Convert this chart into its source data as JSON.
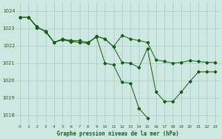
{
  "background_color": "#cce8e0",
  "grid_color": "#aacec8",
  "line_color": "#1a5c1a",
  "xlabel": "Graphe pression niveau de la mer (hPa)",
  "ylim": [
    1017.5,
    1024.5
  ],
  "yticks": [
    1018,
    1019,
    1020,
    1021,
    1022,
    1023,
    1024
  ],
  "xticks": [
    0,
    1,
    2,
    3,
    4,
    5,
    6,
    7,
    8,
    9,
    10,
    11,
    12,
    13,
    14,
    15,
    16,
    17,
    18,
    19,
    20,
    21,
    22,
    23
  ],
  "series": [
    {
      "x": [
        0,
        1,
        2,
        3,
        4,
        5,
        6,
        7,
        8,
        9,
        10,
        11,
        12,
        13,
        14,
        15
      ],
      "y": [
        1023.65,
        1023.65,
        1023.1,
        1022.8,
        1022.2,
        1022.4,
        1022.3,
        1022.3,
        1022.2,
        1022.5,
        1021.0,
        1020.9,
        1019.9,
        1019.85,
        1018.4,
        1017.85
      ]
    },
    {
      "x": [
        0,
        1,
        2,
        3,
        4,
        5,
        6,
        7,
        8,
        9,
        10,
        11,
        12,
        13,
        14,
        15,
        16,
        17,
        18,
        19,
        20,
        21,
        22,
        23
      ],
      "y": [
        1023.65,
        1023.65,
        1023.05,
        1022.85,
        1022.2,
        1022.35,
        1022.25,
        1022.2,
        1022.15,
        1022.55,
        1022.4,
        1021.95,
        1021.05,
        1021.0,
        1020.75,
        1021.85,
        1019.35,
        1018.8,
        1018.8,
        1019.35,
        1019.95,
        1020.5,
        1020.5,
        1020.5
      ]
    },
    {
      "x": [
        0,
        1,
        2,
        3,
        4,
        5,
        6,
        7,
        8,
        9,
        10,
        11,
        12,
        13,
        14,
        15,
        16,
        17,
        18,
        19,
        20,
        21,
        22,
        23
      ],
      "y": [
        1023.65,
        1023.65,
        1023.05,
        1022.85,
        1022.2,
        1022.35,
        1022.25,
        1022.2,
        1022.15,
        1022.55,
        1022.4,
        1021.95,
        1022.6,
        1022.4,
        1022.3,
        1022.2,
        1021.2,
        1021.1,
        1021.0,
        1021.05,
        1021.15,
        1021.1,
        1021.05,
        1021.05
      ]
    }
  ]
}
